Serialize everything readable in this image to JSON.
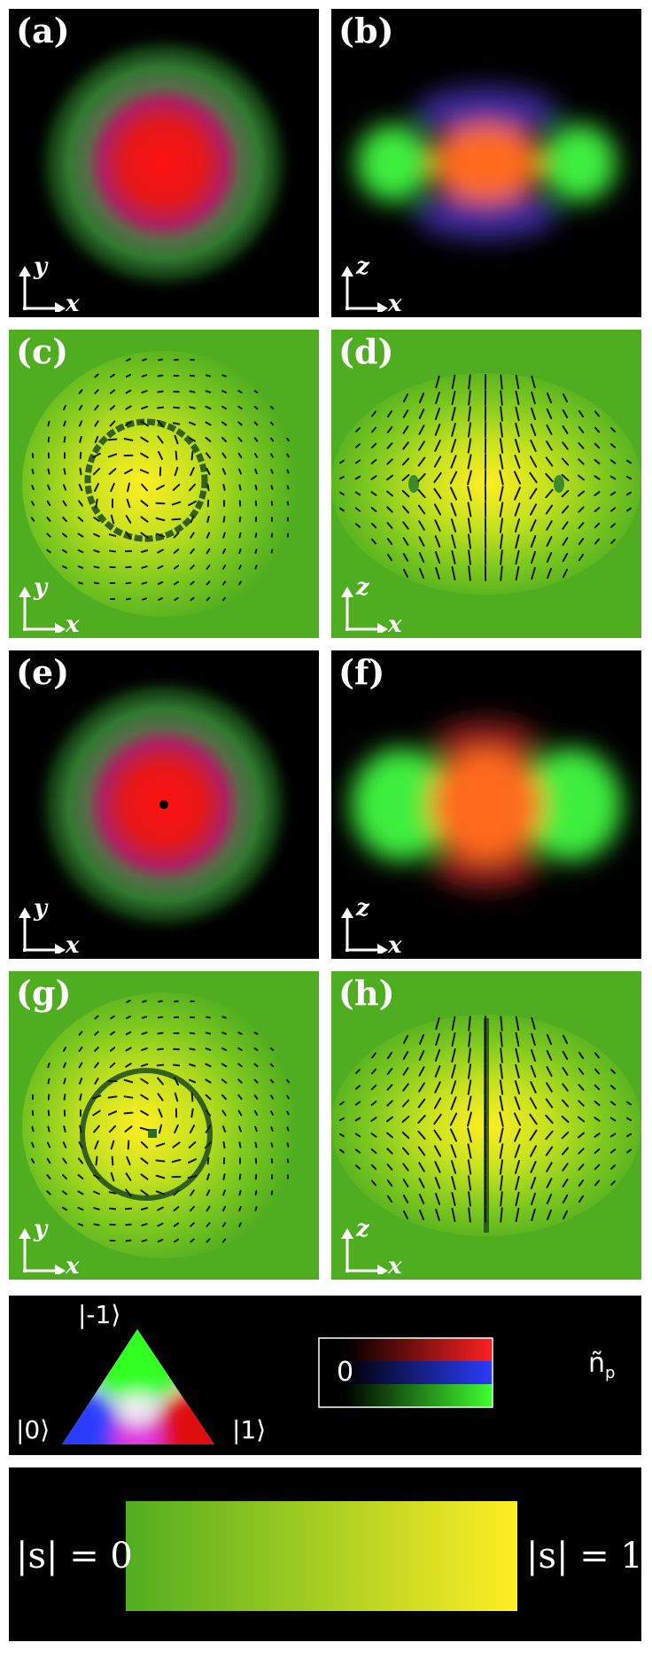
{
  "panels": [
    {
      "label": "(a)",
      "axis_v": "y",
      "axis_h": "x",
      "kind": "density-2d",
      "bg": "#000000"
    },
    {
      "label": "(b)",
      "axis_v": "z",
      "axis_h": "x",
      "kind": "density-side",
      "bg": "#000000"
    },
    {
      "label": "(c)",
      "axis_v": "y",
      "axis_h": "x",
      "kind": "spin-2d",
      "bg": "#4fae1f"
    },
    {
      "label": "(d)",
      "axis_v": "z",
      "axis_h": "x",
      "kind": "spin-side",
      "bg": "#4fae1f"
    },
    {
      "label": "(e)",
      "axis_v": "y",
      "axis_h": "x",
      "kind": "density-2d-vortex",
      "bg": "#000000"
    },
    {
      "label": "(f)",
      "axis_v": "z",
      "axis_h": "x",
      "kind": "density-side",
      "bg": "#000000"
    },
    {
      "label": "(g)",
      "axis_v": "y",
      "axis_h": "x",
      "kind": "spin-2d-vortex",
      "bg": "#4fae1f"
    },
    {
      "label": "(h)",
      "axis_v": "z",
      "axis_h": "x",
      "kind": "spin-side-split",
      "bg": "#4fae1f"
    }
  ],
  "triangle_legend": {
    "top": "|-1⟩",
    "left": "|0⟩",
    "right": "|1⟩",
    "colors": {
      "top": "#33ff22",
      "left": "#2a3cff",
      "right": "#e01010"
    }
  },
  "bar_legend": {
    "zero_label": "0",
    "np_label": "ñ",
    "np_sub": "p",
    "bars": [
      "#ff2020",
      "#2a3cff",
      "#40ff30"
    ]
  },
  "spin_legend": {
    "left": "|s| = 0",
    "right": "|s| = 1",
    "from": "#4fae1f",
    "to": "#ffee22"
  }
}
